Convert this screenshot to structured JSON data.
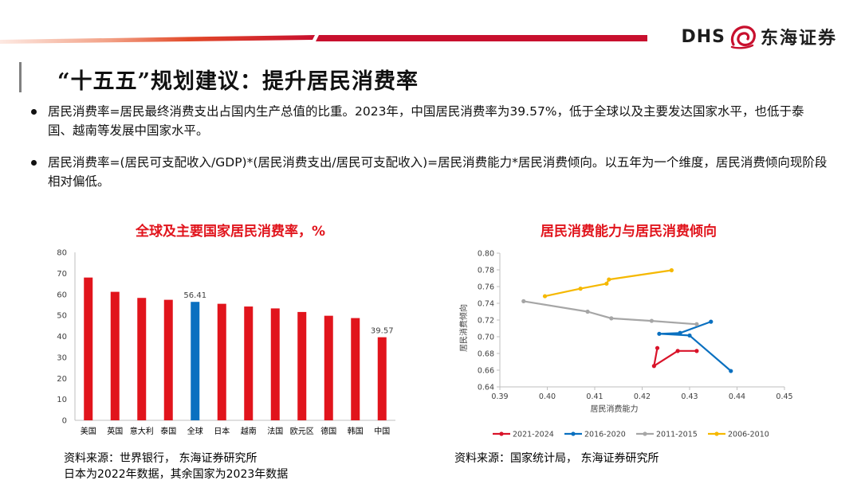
{
  "header": {
    "logo_text": "DHS",
    "logo_cn": "东海证券",
    "title": "“十五五”规划建议：提升居民消费率"
  },
  "bullets": [
    "居民消费率=居民最终消费支出占国内生产总值的比重。2023年，中国居民消费率为39.57%，低于全球以及主要发达国家水平，也低于泰国、越南等发展中国家水平。",
    "居民消费率=(居民可支配收入/GDP)*(居民消费支出/居民可支配收入)=居民消费能力*居民消费倾向。以五年为一个维度，居民消费倾向现阶段相对偏低。"
  ],
  "sources": {
    "left_line1": "资料来源：世界银行， 东海证券研究所",
    "left_line2": "日本为2022年数据，其余国家为2023年数据",
    "right_line1": "资料来源：国家统计局， 东海证券研究所"
  },
  "colors": {
    "brand_red": "#e1141c",
    "bar_red": "#e1141c",
    "bar_blue": "#0a70c0",
    "series": [
      "#d9142a",
      "#0a70c0",
      "#a6a6a6",
      "#f5b800"
    ]
  },
  "chart_data": [
    {
      "type": "bar",
      "title": "全球及主要国家居民消费率，%",
      "categories": [
        "美国",
        "英国",
        "意大利",
        "泰国",
        "全球",
        "日本",
        "越南",
        "法国",
        "欧元区",
        "德国",
        "韩国",
        "中国"
      ],
      "values": [
        68.0,
        61.2,
        58.3,
        57.4,
        56.41,
        55.5,
        54.2,
        53.3,
        51.6,
        49.8,
        48.7,
        39.57
      ],
      "highlight_index": 4,
      "data_labels": {
        "4": "56.41",
        "11": "39.57"
      },
      "ylim": [
        0,
        80
      ],
      "yticks": [
        "0",
        "10",
        "20",
        "30",
        "40",
        "50",
        "60",
        "70",
        "80"
      ],
      "grid": false,
      "legend": "none"
    },
    {
      "type": "line",
      "title": "居民消费能力与居民消费倾向",
      "xlabel": "居民消费能力",
      "ylabel": "居民消费倾向",
      "xlim": [
        0.39,
        0.45
      ],
      "ylim": [
        0.64,
        0.8
      ],
      "xticks": [
        "0.39",
        "0.40",
        "0.41",
        "0.42",
        "0.43",
        "0.44",
        "0.45"
      ],
      "yticks": [
        "0.64",
        "0.66",
        "0.68",
        "0.70",
        "0.72",
        "0.74",
        "0.76",
        "0.78",
        "0.80"
      ],
      "legend": "bottom",
      "series": [
        {
          "name": "2021-2024",
          "points": [
            [
              0.4232,
              0.6865
            ],
            [
              0.4225,
              0.665
            ],
            [
              0.4275,
              0.683
            ],
            [
              0.4315,
              0.683
            ]
          ]
        },
        {
          "name": "2016-2020",
          "points": [
            [
              0.4387,
              0.659
            ],
            [
              0.43,
              0.7015
            ],
            [
              0.4236,
              0.7035
            ],
            [
              0.428,
              0.7045
            ],
            [
              0.4345,
              0.718
            ]
          ]
        },
        {
          "name": "2011-2015",
          "points": [
            [
              0.395,
              0.7425
            ],
            [
              0.4085,
              0.73
            ],
            [
              0.4135,
              0.722
            ],
            [
              0.422,
              0.719
            ],
            [
              0.4315,
              0.715
            ]
          ]
        },
        {
          "name": "2006-2010",
          "points": [
            [
              0.3995,
              0.7485
            ],
            [
              0.407,
              0.7575
            ],
            [
              0.4125,
              0.7635
            ],
            [
              0.413,
              0.7685
            ],
            [
              0.4262,
              0.7795
            ]
          ]
        }
      ]
    }
  ]
}
